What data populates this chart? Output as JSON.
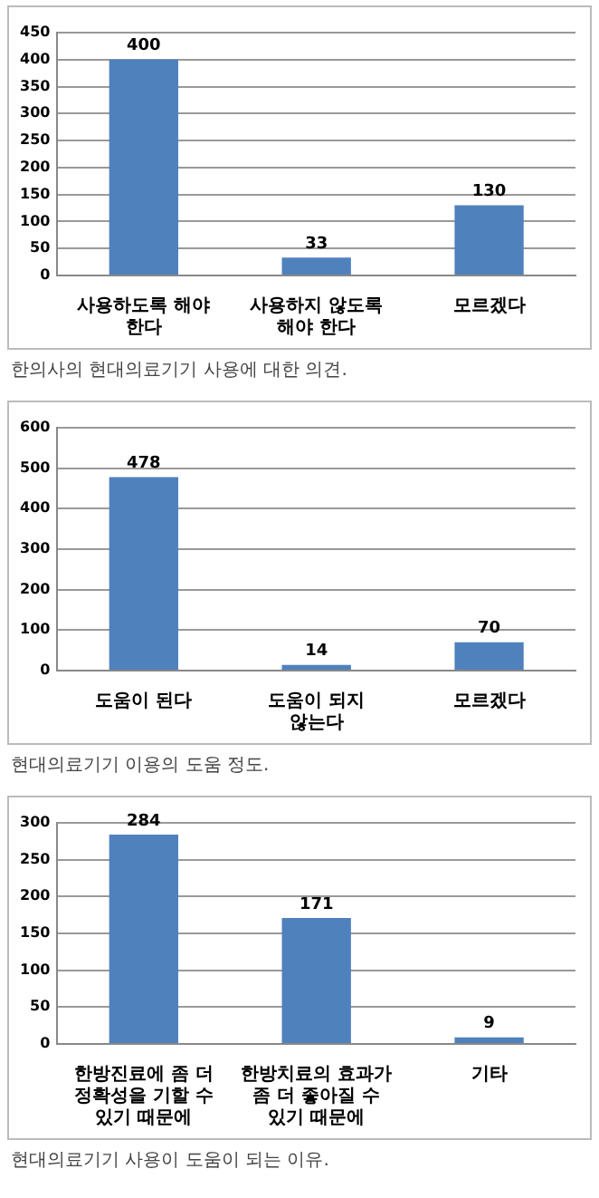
{
  "chart_data": [
    {
      "type": "bar",
      "categories": [
        "사용하도록 해야 한다",
        "사용하지 않도록 해야 한다",
        "모르겠다"
      ],
      "values": [
        400,
        33,
        130
      ],
      "color": "#4f81bd",
      "ylim": [
        0,
        450
      ],
      "yticks": [
        0,
        50,
        100,
        150,
        200,
        250,
        300,
        350,
        400,
        450
      ],
      "grid": "y",
      "data_labels": true,
      "annotations": [
        "한의사의 현대의료기기 사용에 대한 의견."
      ]
    },
    {
      "type": "bar",
      "categories": [
        "도움이 된다",
        "도움이 되지 않는다",
        "모르겠다"
      ],
      "values": [
        478,
        14,
        70
      ],
      "color": "#4f81bd",
      "ylim": [
        0,
        600
      ],
      "yticks": [
        0,
        100,
        200,
        300,
        400,
        500,
        600
      ],
      "grid": "y",
      "data_labels": true,
      "annotations": [
        "현대의료기기 이용의 도움 정도."
      ]
    },
    {
      "type": "bar",
      "categories": [
        "한방진료에 좀 더 정확성을 기할 수 있기 때문에",
        "한방치료의 효과가 좀 더 좋아질 수 있기 때문에",
        "기타"
      ],
      "values": [
        284,
        171,
        9
      ],
      "color": "#4f81bd",
      "ylim": [
        0,
        300
      ],
      "yticks": [
        0,
        50,
        100,
        150,
        200,
        250,
        300
      ],
      "grid": "y",
      "data_labels": true,
      "annotations": [
        "현대의료기기 사용이 도움이 되는 이유."
      ]
    }
  ]
}
